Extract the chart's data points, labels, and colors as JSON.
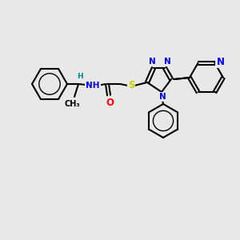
{
  "background_color": "#e8e8e8",
  "bond_color": "#000000",
  "bond_width": 1.5,
  "atom_colors": {
    "N": "#0000FF",
    "O": "#FF0000",
    "S": "#CCCC00",
    "C": "#000000",
    "H": "#008B8B"
  },
  "font_size": 7.5,
  "fig_size": [
    3.0,
    3.0
  ],
  "dpi": 100
}
